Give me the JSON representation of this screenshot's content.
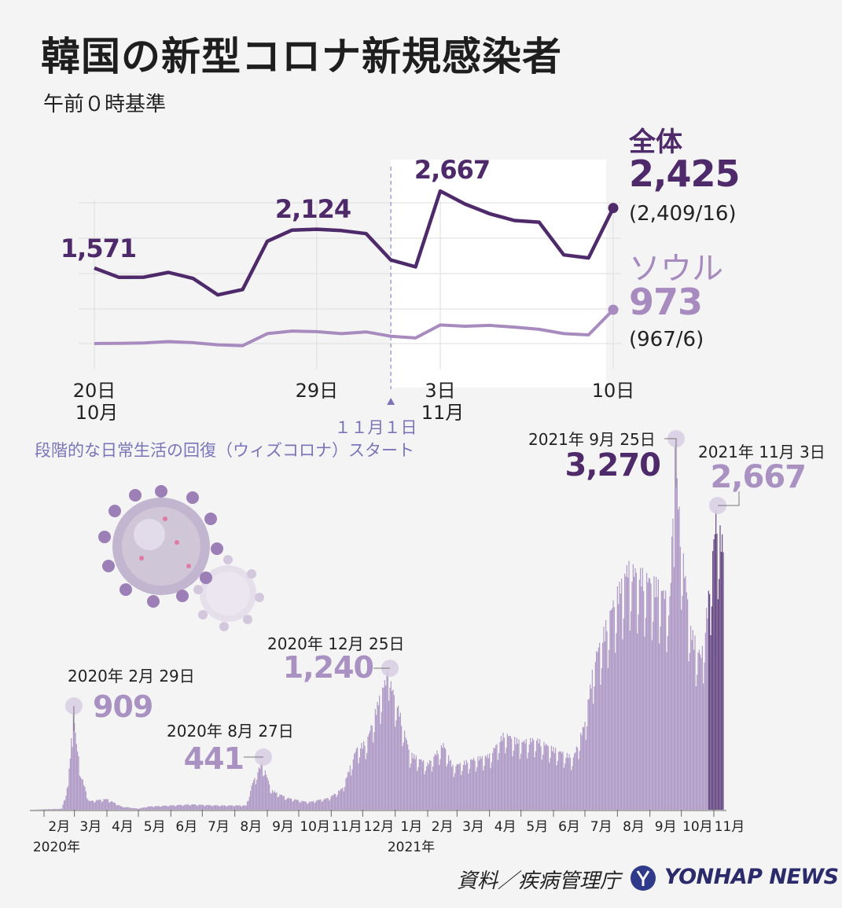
{
  "title": "韓国の新型コロナ新規感染者",
  "subtitle": "午前０時基準",
  "source": "資料／疾病管理庁",
  "brand": "YONHAP NEWS",
  "colors": {
    "total": "#4e2a6b",
    "seoul": "#a78bbf",
    "bar": "#a992c2",
    "bar_recent": "#5a3a7a",
    "marker": "#d9cfe4"
  },
  "chart_data": [
    {
      "type": "line",
      "x": [
        "10-20",
        "10-21",
        "10-22",
        "10-23",
        "10-24",
        "10-25",
        "10-26",
        "10-27",
        "10-28",
        "10-29",
        "10-30",
        "10-31",
        "11-01",
        "11-02",
        "11-03",
        "11-04",
        "11-05",
        "11-06",
        "11-07",
        "11-08",
        "11-09",
        "11-10"
      ],
      "x_ticks": [
        {
          "x": "10-20",
          "day": "20日",
          "month": "10月"
        },
        {
          "x": "10-29",
          "day": "29日",
          "month": ""
        },
        {
          "x": "11-03",
          "day": "3日",
          "month": "11月"
        },
        {
          "x": "11-10",
          "day": "10日",
          "month": ""
        }
      ],
      "series": [
        {
          "name": "全体",
          "values": [
            1571,
            1439,
            1441,
            1509,
            1423,
            1190,
            1266,
            1952,
            2111,
            2124,
            2104,
            2061,
            1686,
            1589,
            2667,
            2482,
            2344,
            2248,
            2224,
            1759,
            1715,
            2425
          ],
          "last_label": "2,425",
          "last_breakdown": "(2,409/16)"
        },
        {
          "name": "ソウル",
          "values": [
            190,
            195,
            205,
            235,
            210,
            160,
            140,
            420,
            480,
            465,
            420,
            460,
            360,
            320,
            620,
            590,
            610,
            570,
            520,
            420,
            390,
            973
          ],
          "last_label": "973",
          "last_breakdown": "(967/6)"
        }
      ],
      "point_labels": [
        {
          "x": "10-20",
          "text": "1,571"
        },
        {
          "x": "10-29",
          "text": "2,124"
        },
        {
          "x": "11-03",
          "text": "2,667"
        }
      ],
      "event": {
        "x": "11-01",
        "text1": "１１月１日",
        "text2": "段階的な日常生活の回復（ウィズコロナ）スタート"
      },
      "grid": true
    },
    {
      "type": "bar",
      "x_range": [
        "2020-01-20",
        "2021-11-10"
      ],
      "month_ticks": [
        "2月",
        "3月",
        "4月",
        "5月",
        "6月",
        "7月",
        "8月",
        "9月",
        "10月",
        "11月",
        "12月",
        "1月",
        "2月",
        "3月",
        "4月",
        "5月",
        "6月",
        "7月",
        "8月",
        "9月",
        "10月",
        "11月"
      ],
      "year_labels": [
        "2020年",
        "2021年"
      ],
      "envelope": [
        [
          "2020-01-20",
          0
        ],
        [
          "2020-02-18",
          10
        ],
        [
          "2020-02-24",
          230
        ],
        [
          "2020-02-29",
          909
        ],
        [
          "2020-03-03",
          600
        ],
        [
          "2020-03-08",
          300
        ],
        [
          "2020-03-15",
          80
        ],
        [
          "2020-04-01",
          100
        ],
        [
          "2020-04-15",
          30
        ],
        [
          "2020-05-01",
          10
        ],
        [
          "2020-05-10",
          30
        ],
        [
          "2020-06-01",
          40
        ],
        [
          "2020-06-20",
          50
        ],
        [
          "2020-07-15",
          40
        ],
        [
          "2020-08-12",
          40
        ],
        [
          "2020-08-18",
          250
        ],
        [
          "2020-08-27",
          441
        ],
        [
          "2020-09-05",
          180
        ],
        [
          "2020-09-20",
          110
        ],
        [
          "2020-10-10",
          70
        ],
        [
          "2020-10-30",
          110
        ],
        [
          "2020-11-12",
          200
        ],
        [
          "2020-11-25",
          560
        ],
        [
          "2020-12-05",
          630
        ],
        [
          "2020-12-18",
          1060
        ],
        [
          "2020-12-25",
          1240
        ],
        [
          "2021-01-05",
          900
        ],
        [
          "2021-01-15",
          520
        ],
        [
          "2021-02-01",
          420
        ],
        [
          "2021-02-16",
          600
        ],
        [
          "2021-02-25",
          400
        ],
        [
          "2021-03-15",
          460
        ],
        [
          "2021-04-01",
          500
        ],
        [
          "2021-04-15",
          700
        ],
        [
          "2021-05-01",
          620
        ],
        [
          "2021-05-15",
          650
        ],
        [
          "2021-06-01",
          560
        ],
        [
          "2021-06-20",
          480
        ],
        [
          "2021-07-01",
          800
        ],
        [
          "2021-07-10",
          1370
        ],
        [
          "2021-07-28",
          1890
        ],
        [
          "2021-08-11",
          2220
        ],
        [
          "2021-08-25",
          2150
        ],
        [
          "2021-09-10",
          2050
        ],
        [
          "2021-09-20",
          1900
        ],
        [
          "2021-09-25",
          3270
        ],
        [
          "2021-09-30",
          2560
        ],
        [
          "2021-10-10",
          1650
        ],
        [
          "2021-10-20",
          1400
        ],
        [
          "2021-10-27",
          1950
        ],
        [
          "2021-11-03",
          2667
        ],
        [
          "2021-11-10",
          2425
        ]
      ],
      "highlight_from": "2021-10-27",
      "annotations": [
        {
          "date": "2020-02-29",
          "label": "2020年 2月 29日",
          "value": "909"
        },
        {
          "date": "2020-08-27",
          "label": "2020年 8月 27日",
          "value": "441"
        },
        {
          "date": "2020-12-25",
          "label": "2020年 12月 25日",
          "value": "1,240"
        },
        {
          "date": "2021-09-25",
          "label": "2021年 9月 25日",
          "value": "3,270"
        },
        {
          "date": "2021-11-03",
          "label": "2021年 11月 3日",
          "value": "2,667"
        }
      ]
    }
  ]
}
